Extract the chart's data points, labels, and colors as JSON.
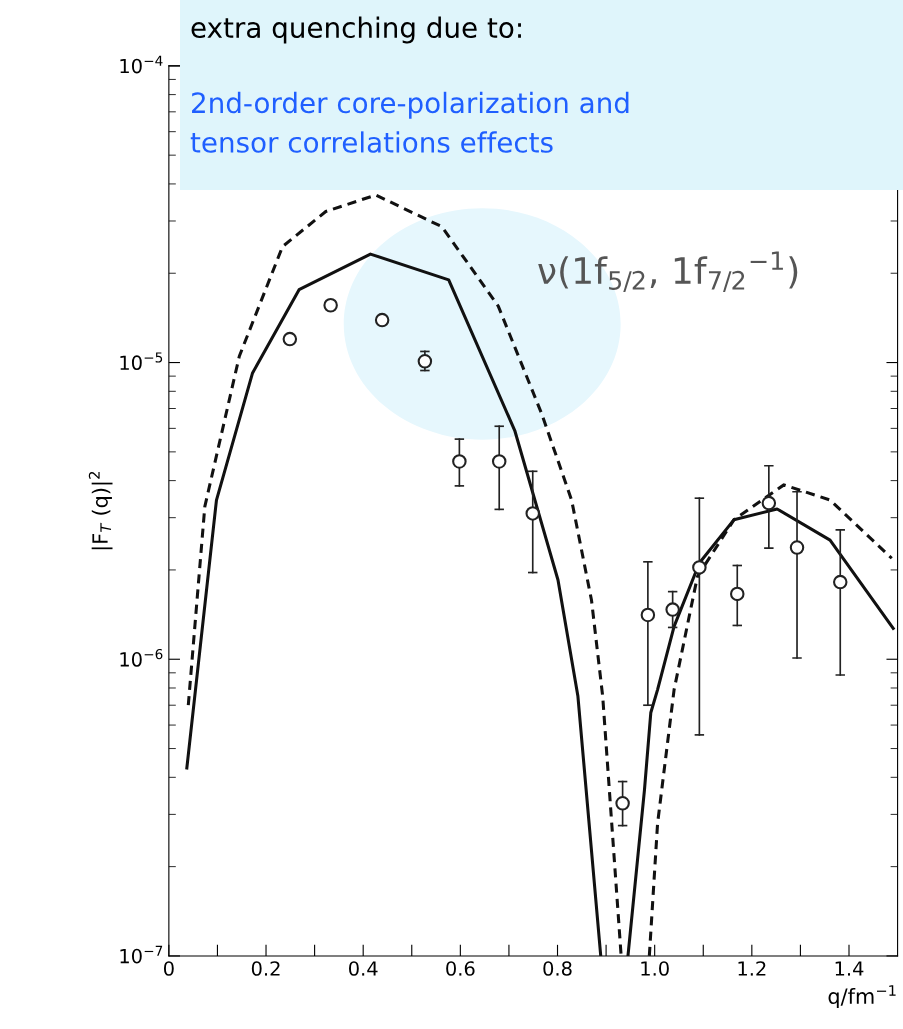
{
  "chart_data": {
    "type": "line",
    "xlabel": "q/fm$^{−1}$",
    "ylabel": "|F$_{T}$ (q)|$^{2}$",
    "log": "y",
    "grid": false,
    "legend": false,
    "xlim": [
      0,
      1.5
    ],
    "ylim": [
      1e-07,
      0.0001
    ],
    "xticks": [
      0,
      {
        "value": 0.1,
        "label": null
      },
      0.2,
      {
        "value": 0.3,
        "label": null
      },
      0.4,
      {
        "value": 0.5,
        "label": null
      },
      0.6,
      {
        "value": 0.7,
        "label": null
      },
      0.8,
      {
        "value": 0.9,
        "label": null
      },
      {
        "value": 1.0,
        "label": "1.0"
      },
      {
        "value": 1.1,
        "label": null
      },
      1.2,
      {
        "value": 1.3,
        "label": null
      },
      1.4
    ],
    "yticks": [
      {
        "value": 1e-07,
        "label": "10$^{−7}$"
      },
      {
        "value": 1e-06,
        "label": "10$^{−6}$"
      },
      {
        "value": 1e-05,
        "label": "10$^{−5}$"
      },
      {
        "value": 0.0001,
        "label": "10$^{−4}$"
      }
    ],
    "annotations": [
      "extra quenching due to:",
      "2nd-order core-polarization and\ntensor correlations effects",
      "ν(1f$_{5/2}$, 1f$_{7/2}$$^{−1}$)"
    ],
    "series": [
      {
        "color": "#111111",
        "line_style": "solid",
        "marker": "none",
        "x": [
          0.037,
          0.098,
          0.172,
          0.268,
          0.415,
          0.576,
          0.712,
          0.801,
          0.842,
          0.889
        ],
        "values": [
          4.3e-07,
          3.44e-06,
          9.2e-06,
          1.76e-05,
          2.32e-05,
          1.9e-05,
          5.9e-06,
          1.85e-06,
          7.5e-07,
          1e-07
        ]
      },
      {
        "color": "#111111",
        "line_style": "solid",
        "marker": "none",
        "x": [
          0.945,
          0.979,
          0.992,
          1.006,
          1.04,
          1.092,
          1.163,
          1.252,
          1.361,
          1.491
        ],
        "values": [
          1e-07,
          3.63e-07,
          6.6e-07,
          7.9e-07,
          1.29e-06,
          2.11e-06,
          2.95e-06,
          3.21e-06,
          2.52e-06,
          1.27e-06
        ]
      },
      {
        "color": "#111111",
        "line_style": "dashed",
        "marker": "none",
        "x": [
          0.04,
          0.074,
          0.145,
          0.234,
          0.323,
          0.426,
          0.562,
          0.678,
          0.767,
          0.829,
          0.87,
          0.893,
          0.931
        ],
        "values": [
          7e-07,
          3.27e-06,
          1.05e-05,
          2.46e-05,
          3.23e-05,
          3.67e-05,
          2.87e-05,
          1.55e-05,
          6.75e-06,
          3.44e-06,
          1.58e-06,
          7.5e-07,
          1e-07
        ]
      },
      {
        "color": "#111111",
        "line_style": "dashed",
        "marker": "none",
        "x": [
          0.989,
          1.006,
          1.04,
          1.088,
          1.163,
          1.266,
          1.361,
          1.488
        ],
        "values": [
          1e-07,
          2.8e-07,
          7.9e-07,
          1.9e-06,
          2.95e-06,
          3.87e-06,
          3.44e-06,
          2.19e-06
        ]
      },
      {
        "type": "scatter",
        "color": "#222222",
        "marker": "circle",
        "x": [
          0.249,
          0.333,
          0.439,
          0.527,
          0.598,
          0.68,
          0.749,
          0.934,
          0.986,
          1.037,
          1.092,
          1.17,
          1.235,
          1.293,
          1.382
        ],
        "values": [
          1.2e-05,
          1.56e-05,
          1.39e-05,
          1.01e-05,
          4.64e-06,
          4.64e-06,
          3.1e-06,
          3.27e-07,
          1.41e-06,
          1.47e-06,
          2.04e-06,
          1.66e-06,
          3.36e-06,
          2.38e-06,
          1.82e-06
        ],
        "errors": [
          null,
          null,
          null,
          [
            9.4e-06,
            1.09e-05
          ],
          [
            3.84e-06,
            5.52e-06
          ],
          [
            3.2e-06,
            6.1e-06
          ],
          [
            1.96e-06,
            4.3e-06
          ],
          [
            2.75e-07,
            3.87e-07
          ],
          [
            7e-07,
            2.13e-06
          ],
          [
            1.28e-06,
            1.69e-06
          ],
          [
            5.56e-07,
            3.49e-06
          ],
          [
            1.3e-06,
            2.07e-06
          ],
          [
            2.37e-06,
            4.49e-06
          ],
          [
            1.01e-06,
            3.67e-06
          ],
          [
            8.85e-07,
            2.73e-06
          ]
        ]
      }
    ]
  }
}
